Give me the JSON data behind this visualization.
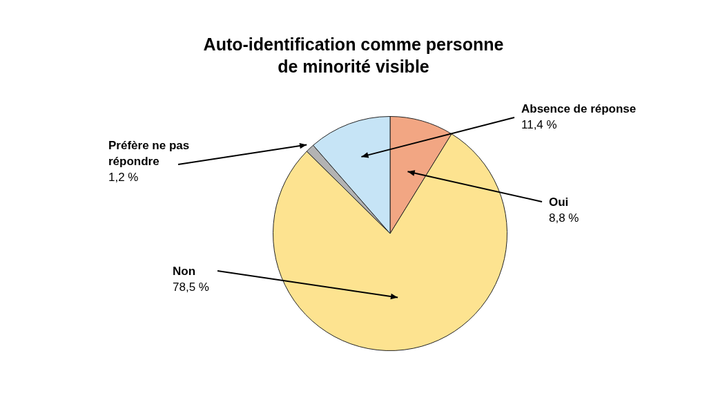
{
  "chart_data": {
    "type": "pie",
    "title": "Auto-identification comme personne de minorité visible",
    "categories": [
      "Oui",
      "Non",
      "Préfère ne pas répondre",
      "Absence de réponse"
    ],
    "values": [
      8.8,
      78.5,
      1.2,
      11.4
    ],
    "value_labels": [
      "8,8 %",
      "78,5 %",
      "1,2 %",
      "11,4 %"
    ],
    "colors": [
      "#f2a683",
      "#fde390",
      "#b3b3b3",
      "#c6e4f6"
    ],
    "legend": false
  }
}
